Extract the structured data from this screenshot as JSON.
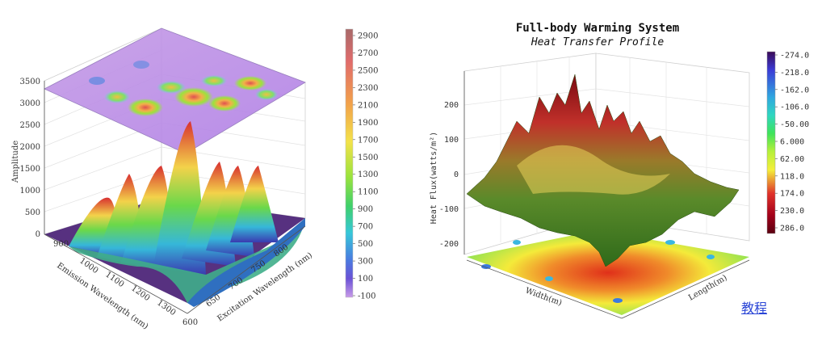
{
  "charts": {
    "left": {
      "type": "surface3d",
      "z_ticks": [
        "0",
        "500",
        "1000",
        "1500",
        "2000",
        "2500",
        "3000",
        "3500"
      ],
      "z_label": "Amplitude",
      "x_label": "Emission Wavelength (nm)",
      "x_ticks": [
        "900",
        "1000",
        "1100",
        "1200",
        "1300"
      ],
      "y_label": "Excitation Wavelength (nm)",
      "y_ticks": [
        "600",
        "650",
        "700",
        "750",
        "800"
      ],
      "colorbar_ticks": [
        "2900",
        "2700",
        "2500",
        "2300",
        "2100",
        "1900",
        "1700",
        "1500",
        "1300",
        "1100",
        "900",
        "700",
        "500",
        "300",
        "100",
        "-100"
      ],
      "colorbar_colors": [
        "#b06a6a",
        "#e06b6b",
        "#f2a24a",
        "#f3e24a",
        "#9be33d",
        "#3fd06b",
        "#36c7d9",
        "#4a7be0",
        "#6a52d6",
        "#b07be0"
      ]
    },
    "right": {
      "type": "surface3d",
      "title": "Full-body Warming System",
      "subtitle": "Heat Transfer Profile",
      "z_label": "Heat Flux(watts/m²)",
      "z_ticks": [
        "200",
        "100",
        "0",
        "-100",
        "-200"
      ],
      "x_label": "Width(m)",
      "y_label": "Length(m)",
      "colorbar_ticks": [
        "-274.0",
        "-218.0",
        "-162.0",
        "-106.0",
        "-50.00",
        "6.000",
        "62.00",
        "118.0",
        "174.0",
        "230.0",
        "286.0"
      ],
      "colorbar_colors": [
        "#3a0a56",
        "#3b3bd6",
        "#2fa7e0",
        "#2fd6c0",
        "#3ee35a",
        "#b6f03a",
        "#f4ef3a",
        "#f4a23a",
        "#e0322a",
        "#a3001a",
        "#5a0010"
      ]
    }
  },
  "chart_data": [
    {
      "type": "surface3d",
      "xlabel": "Emission Wavelength (nm)",
      "ylabel": "Excitation Wavelength (nm)",
      "zlabel": "Amplitude",
      "xlim": [
        850,
        1350
      ],
      "ylim": [
        600,
        850
      ],
      "zlim": [
        0,
        3500
      ],
      "peaks": [
        {
          "x": 1000,
          "y": 780,
          "z": 2900
        },
        {
          "x": 1050,
          "y": 720,
          "z": 1900
        },
        {
          "x": 1100,
          "y": 680,
          "z": 2100
        },
        {
          "x": 1150,
          "y": 650,
          "z": 1800
        },
        {
          "x": 950,
          "y": 800,
          "z": 1400
        },
        {
          "x": 1200,
          "y": 720,
          "z": 1600
        }
      ]
    },
    {
      "type": "surface3d",
      "title": "Full-body Warming System",
      "subtitle": "Heat Transfer Profile",
      "zlabel": "Heat Flux(watts/m²)",
      "xlabel": "Width(m)",
      "ylabel": "Length(m)",
      "zlim": [
        -274,
        286
      ],
      "z_ticks": [
        -200,
        -100,
        0,
        100,
        200
      ]
    }
  ],
  "footer": {
    "link_label": "教程"
  }
}
